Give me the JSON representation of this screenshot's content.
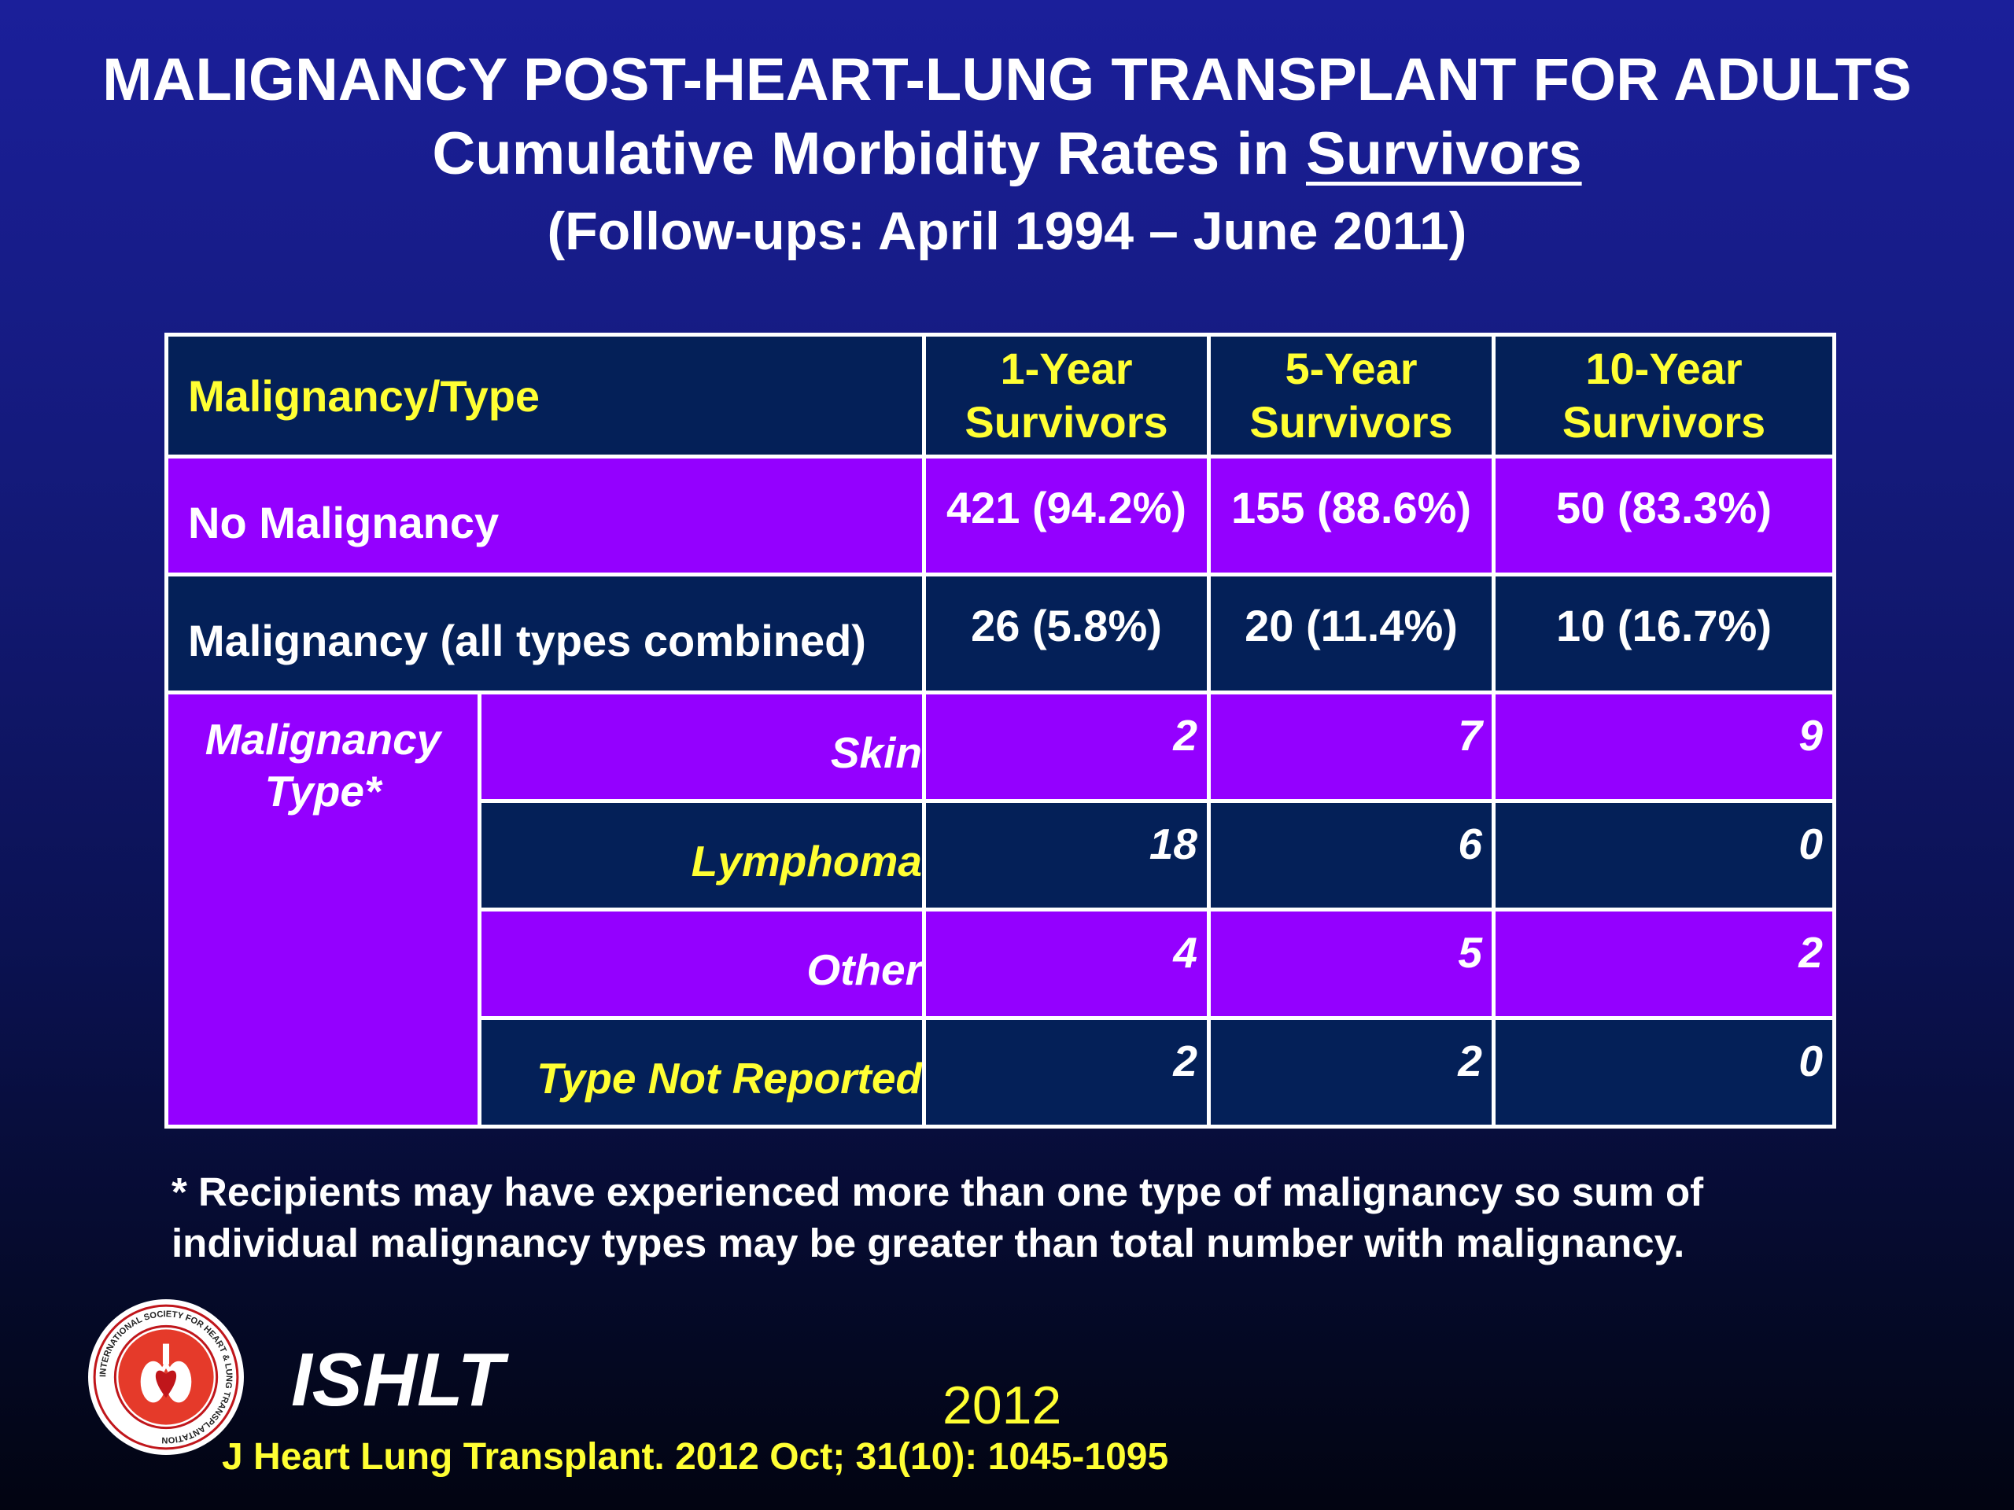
{
  "title": {
    "line1": "MALIGNANCY POST-HEART-LUNG TRANSPLANT  FOR ADULTS",
    "line2_prefix": "Cumulative Morbidity Rates in ",
    "line2_underlined": "Survivors",
    "line3": "(Follow-ups: April 1994 – June 2011)"
  },
  "table": {
    "header": {
      "col0": "Malignancy/Type",
      "col1": [
        "1-Year",
        "Survivors"
      ],
      "col2": [
        "5-Year",
        "Survivors"
      ],
      "col3": [
        "10-Year",
        "Survivors"
      ]
    },
    "no_malignancy": {
      "label": "No Malignancy",
      "values": [
        "421 (94.2%)",
        "155 (88.6%)",
        "50 (83.3%)"
      ]
    },
    "malignancy_all": {
      "label": "Malignancy (all types combined)",
      "values": [
        "26 (5.8%)",
        "20 (11.4%)",
        "10 (16.7%)"
      ]
    },
    "type_group": {
      "label": [
        "Malignancy",
        "Type*"
      ]
    },
    "types": [
      {
        "name": "Skin",
        "values": [
          "2",
          "7",
          "9"
        ]
      },
      {
        "name": "Lymphoma",
        "values": [
          "18",
          "6",
          "0"
        ]
      },
      {
        "name": "Other",
        "values": [
          "4",
          "5",
          "2"
        ]
      },
      {
        "name": "Type Not Reported",
        "values": [
          "2",
          "2",
          "0"
        ]
      }
    ]
  },
  "footnote": [
    "* Recipients may have experienced more than one type of malignancy so sum of",
    "individual malignancy types may be greater than total number with malignancy."
  ],
  "footer": {
    "org": "ISHLT",
    "logo_text": "INTERNATIONAL SOCIETY FOR HEART & LUNG TRANSPLANTATION",
    "year": "2012",
    "citation": "J Heart Lung Transplant.  2012 Oct; 31(10): 1045-1095"
  },
  "colors": {
    "background": "#141a7c",
    "header_cell": "#042058",
    "highlight_cell": "#9400ff",
    "header_text": "#ffff33"
  }
}
